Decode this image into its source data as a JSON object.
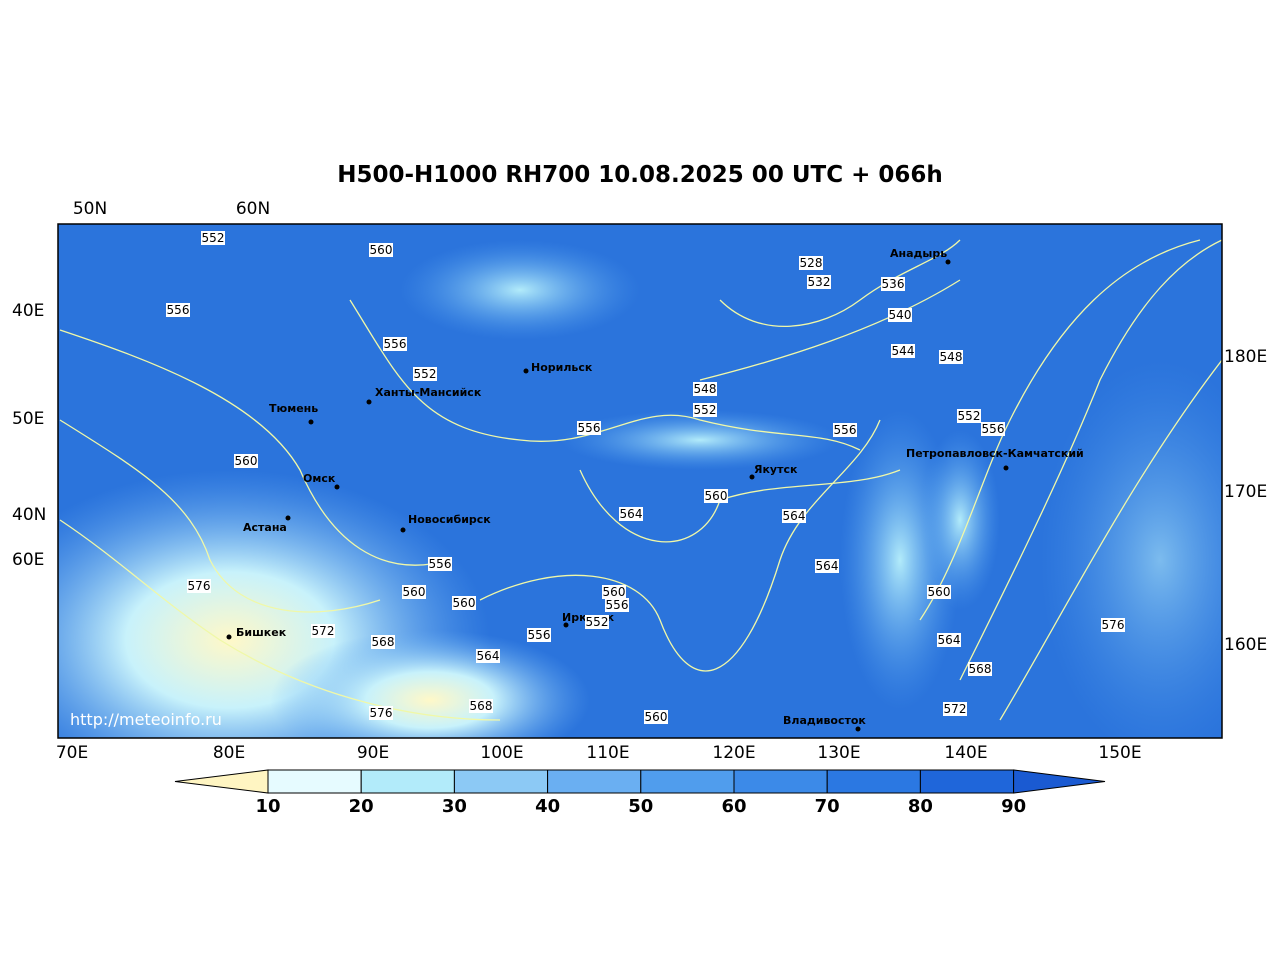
{
  "header": {
    "title": "H500-H1000 RH700 10.08.2025 00 UTC + 066h"
  },
  "map": {
    "top_labels": [
      "50N",
      "60N"
    ],
    "left_labels": [
      "40E",
      "50E",
      "40N",
      "60E"
    ],
    "right_labels": [
      "180E",
      "170E",
      "160E"
    ],
    "bottom_labels": [
      "70E",
      "80E",
      "90E",
      "100E",
      "110E",
      "120E",
      "130E",
      "140E",
      "150E"
    ],
    "cities": [
      "Анадырь",
      "Норильск",
      "Ханты-Мансийск",
      "Тюмень",
      "Омск",
      "Астана",
      "Новосибирск",
      "Якутск",
      "Петропавловск-Камчатский",
      "Иркутск",
      "Бишкек",
      "Владивосток"
    ],
    "contour_labels": [
      552,
      560,
      556,
      556,
      552,
      560,
      556,
      528,
      532,
      536,
      540,
      544,
      548,
      548,
      552,
      556,
      552,
      556,
      560,
      564,
      564,
      564,
      556,
      576,
      560,
      560,
      560,
      556,
      552,
      556,
      572,
      568,
      564,
      560,
      564,
      576,
      568,
      572,
      576,
      568,
      560
    ],
    "watermark": "http://meteoinfo.ru"
  },
  "colorbar": {
    "ticks": [
      10,
      20,
      30,
      40,
      50,
      60,
      70,
      80,
      90
    ],
    "colors": [
      "#fff5c2",
      "#e6fbff",
      "#b2ebfa",
      "#8cc9f5",
      "#6aaff2",
      "#509ded",
      "#3c8ae8",
      "#2b78e2",
      "#1f66da",
      "#1a5ad2"
    ]
  }
}
